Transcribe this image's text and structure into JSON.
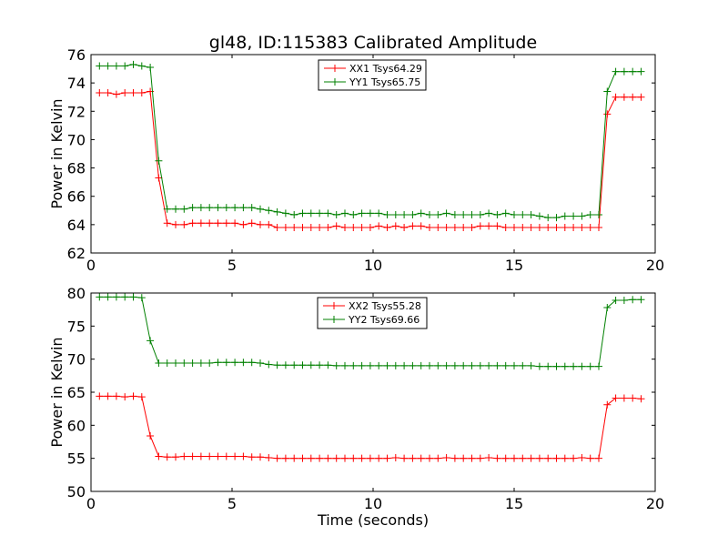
{
  "title": "gl48, ID:115383 Calibrated Amplitude",
  "chart_data": [
    {
      "type": "line",
      "ylabel": "Power in Kelvin",
      "xlabel": "",
      "xlim": [
        0,
        20
      ],
      "ylim": [
        62,
        76
      ],
      "xticks": [
        0,
        5,
        10,
        15,
        20
      ],
      "yticks": [
        62,
        64,
        66,
        68,
        70,
        72,
        74,
        76
      ],
      "grid": false,
      "legend_position": "top-center",
      "series": [
        {
          "name": "XX1 Tsys64.29",
          "color": "#ff0000",
          "x": [
            0.3,
            0.6,
            0.9,
            1.2,
            1.5,
            1.8,
            2.1,
            2.4,
            2.7,
            3.0,
            3.3,
            3.6,
            3.9,
            4.2,
            4.5,
            4.8,
            5.1,
            5.4,
            5.7,
            6.0,
            6.3,
            6.6,
            6.9,
            7.2,
            7.5,
            7.8,
            8.1,
            8.4,
            8.7,
            9.0,
            9.3,
            9.6,
            9.9,
            10.2,
            10.5,
            10.8,
            11.1,
            11.4,
            11.7,
            12.0,
            12.3,
            12.6,
            12.9,
            13.2,
            13.5,
            13.8,
            14.1,
            14.4,
            14.7,
            15.0,
            15.3,
            15.6,
            15.9,
            16.2,
            16.5,
            16.8,
            17.1,
            17.4,
            17.7,
            18.0,
            18.3,
            18.6,
            18.9,
            19.2,
            19.5
          ],
          "y": [
            73.3,
            73.3,
            73.2,
            73.3,
            73.3,
            73.3,
            73.4,
            67.3,
            64.1,
            64.0,
            64.0,
            64.1,
            64.1,
            64.1,
            64.1,
            64.1,
            64.1,
            64.0,
            64.1,
            64.0,
            64.0,
            63.8,
            63.8,
            63.8,
            63.8,
            63.8,
            63.8,
            63.8,
            63.9,
            63.8,
            63.8,
            63.8,
            63.8,
            63.9,
            63.8,
            63.9,
            63.8,
            63.9,
            63.9,
            63.8,
            63.8,
            63.8,
            63.8,
            63.8,
            63.8,
            63.9,
            63.9,
            63.9,
            63.8,
            63.8,
            63.8,
            63.8,
            63.8,
            63.8,
            63.8,
            63.8,
            63.8,
            63.8,
            63.8,
            63.8,
            71.8,
            73.0,
            73.0,
            73.0,
            73.0
          ]
        },
        {
          "name": "YY1 Tsys65.75",
          "color": "#008000",
          "x": [
            0.3,
            0.6,
            0.9,
            1.2,
            1.5,
            1.8,
            2.1,
            2.4,
            2.7,
            3.0,
            3.3,
            3.6,
            3.9,
            4.2,
            4.5,
            4.8,
            5.1,
            5.4,
            5.7,
            6.0,
            6.3,
            6.6,
            6.9,
            7.2,
            7.5,
            7.8,
            8.1,
            8.4,
            8.7,
            9.0,
            9.3,
            9.6,
            9.9,
            10.2,
            10.5,
            10.8,
            11.1,
            11.4,
            11.7,
            12.0,
            12.3,
            12.6,
            12.9,
            13.2,
            13.5,
            13.8,
            14.1,
            14.4,
            14.7,
            15.0,
            15.3,
            15.6,
            15.9,
            16.2,
            16.5,
            16.8,
            17.1,
            17.4,
            17.7,
            18.0,
            18.3,
            18.6,
            18.9,
            19.2,
            19.5
          ],
          "y": [
            75.2,
            75.2,
            75.2,
            75.2,
            75.3,
            75.2,
            75.1,
            68.5,
            65.1,
            65.1,
            65.1,
            65.2,
            65.2,
            65.2,
            65.2,
            65.2,
            65.2,
            65.2,
            65.2,
            65.1,
            65.0,
            64.9,
            64.8,
            64.7,
            64.8,
            64.8,
            64.8,
            64.8,
            64.7,
            64.8,
            64.7,
            64.8,
            64.8,
            64.8,
            64.7,
            64.7,
            64.7,
            64.7,
            64.8,
            64.7,
            64.7,
            64.8,
            64.7,
            64.7,
            64.7,
            64.7,
            64.8,
            64.7,
            64.8,
            64.7,
            64.7,
            64.7,
            64.6,
            64.5,
            64.5,
            64.6,
            64.6,
            64.6,
            64.7,
            64.7,
            73.4,
            74.8,
            74.8,
            74.8,
            74.8
          ]
        }
      ]
    },
    {
      "type": "line",
      "ylabel": "Power in Kelvin",
      "xlabel": "Time (seconds)",
      "xlim": [
        0,
        20
      ],
      "ylim": [
        50,
        80
      ],
      "xticks": [
        0,
        5,
        10,
        15,
        20
      ],
      "yticks": [
        50,
        55,
        60,
        65,
        70,
        75,
        80
      ],
      "grid": false,
      "legend_position": "top-center",
      "series": [
        {
          "name": "XX2 Tsys55.28",
          "color": "#ff0000",
          "x": [
            0.3,
            0.6,
            0.9,
            1.2,
            1.5,
            1.8,
            2.1,
            2.4,
            2.7,
            3.0,
            3.3,
            3.6,
            3.9,
            4.2,
            4.5,
            4.8,
            5.1,
            5.4,
            5.7,
            6.0,
            6.3,
            6.6,
            6.9,
            7.2,
            7.5,
            7.8,
            8.1,
            8.4,
            8.7,
            9.0,
            9.3,
            9.6,
            9.9,
            10.2,
            10.5,
            10.8,
            11.1,
            11.4,
            11.7,
            12.0,
            12.3,
            12.6,
            12.9,
            13.2,
            13.5,
            13.8,
            14.1,
            14.4,
            14.7,
            15.0,
            15.3,
            15.6,
            15.9,
            16.2,
            16.5,
            16.8,
            17.1,
            17.4,
            17.7,
            18.0,
            18.3,
            18.6,
            18.9,
            19.2,
            19.5
          ],
          "y": [
            64.4,
            64.4,
            64.4,
            64.3,
            64.4,
            64.3,
            58.4,
            55.3,
            55.2,
            55.2,
            55.3,
            55.3,
            55.3,
            55.3,
            55.3,
            55.3,
            55.3,
            55.3,
            55.2,
            55.2,
            55.1,
            55.0,
            55.0,
            55.0,
            55.0,
            55.0,
            55.0,
            55.0,
            55.0,
            55.0,
            55.0,
            55.0,
            55.0,
            55.0,
            55.0,
            55.1,
            55.0,
            55.0,
            55.0,
            55.0,
            55.0,
            55.1,
            55.0,
            55.0,
            55.0,
            55.0,
            55.1,
            55.0,
            55.0,
            55.0,
            55.0,
            55.0,
            55.0,
            55.0,
            55.0,
            55.0,
            55.0,
            55.1,
            55.0,
            55.0,
            63.1,
            64.1,
            64.1,
            64.1,
            64.0
          ]
        },
        {
          "name": "YY2 Tsys69.66",
          "color": "#008000",
          "x": [
            0.3,
            0.6,
            0.9,
            1.2,
            1.5,
            1.8,
            2.1,
            2.4,
            2.7,
            3.0,
            3.3,
            3.6,
            3.9,
            4.2,
            4.5,
            4.8,
            5.1,
            5.4,
            5.7,
            6.0,
            6.3,
            6.6,
            6.9,
            7.2,
            7.5,
            7.8,
            8.1,
            8.4,
            8.7,
            9.0,
            9.3,
            9.6,
            9.9,
            10.2,
            10.5,
            10.8,
            11.1,
            11.4,
            11.7,
            12.0,
            12.3,
            12.6,
            12.9,
            13.2,
            13.5,
            13.8,
            14.1,
            14.4,
            14.7,
            15.0,
            15.3,
            15.6,
            15.9,
            16.2,
            16.5,
            16.8,
            17.1,
            17.4,
            17.7,
            18.0,
            18.3,
            18.6,
            18.9,
            19.2,
            19.5
          ],
          "y": [
            79.4,
            79.4,
            79.4,
            79.4,
            79.4,
            79.3,
            72.8,
            69.4,
            69.4,
            69.4,
            69.4,
            69.4,
            69.4,
            69.4,
            69.5,
            69.5,
            69.5,
            69.5,
            69.5,
            69.4,
            69.2,
            69.1,
            69.1,
            69.1,
            69.1,
            69.1,
            69.1,
            69.1,
            69.0,
            69.0,
            69.0,
            69.0,
            69.0,
            69.0,
            69.0,
            69.0,
            69.0,
            69.0,
            69.0,
            69.0,
            69.0,
            69.0,
            69.0,
            69.0,
            69.0,
            69.0,
            69.0,
            69.0,
            69.0,
            69.0,
            69.0,
            69.0,
            68.9,
            68.9,
            68.9,
            68.9,
            68.9,
            68.9,
            68.9,
            68.9,
            77.8,
            78.9,
            78.9,
            79.0,
            79.0
          ]
        }
      ]
    }
  ]
}
